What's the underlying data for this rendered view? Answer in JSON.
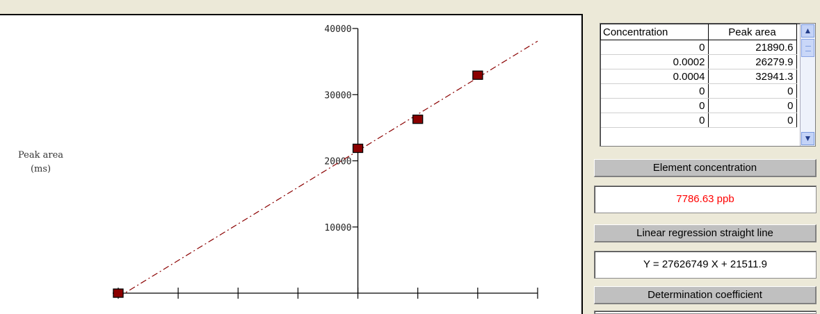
{
  "chart_data": {
    "type": "scatter",
    "ylabel_line1": "Peak area",
    "ylabel_line2": "(ms)",
    "yticks": [
      "10000",
      "20000",
      "30000",
      "40000"
    ],
    "points": [
      {
        "x": -0.0008,
        "y": 0
      },
      {
        "x": 0,
        "y": 21890.6
      },
      {
        "x": 0.0002,
        "y": 26279.9
      },
      {
        "x": 0.0004,
        "y": 32941.3
      }
    ],
    "regression": {
      "slope": 27626749,
      "intercept": 21511.9,
      "x_range": [
        -0.0008,
        0.0006
      ]
    },
    "xlim": [
      -0.0008,
      0.0006
    ],
    "ylim": [
      0,
      40000
    ],
    "marker_color": "#8b0000",
    "line_color": "#8b0000"
  },
  "table": {
    "headers": [
      "Concentration",
      "Peak area"
    ],
    "rows": [
      [
        "0",
        "21890.6"
      ],
      [
        "0.0002",
        "26279.9"
      ],
      [
        "0.0004",
        "32941.3"
      ],
      [
        "0",
        "0"
      ],
      [
        "0",
        "0"
      ],
      [
        "0",
        "0"
      ]
    ]
  },
  "labels": {
    "element_concentration": "Element concentration",
    "element_concentration_value": "7786.63 ppb",
    "linear_regression": "Linear regression straight line",
    "linear_regression_value": "Y = 27626749 X + 21511.9",
    "determination_coefficient": "Determination coefficient"
  }
}
